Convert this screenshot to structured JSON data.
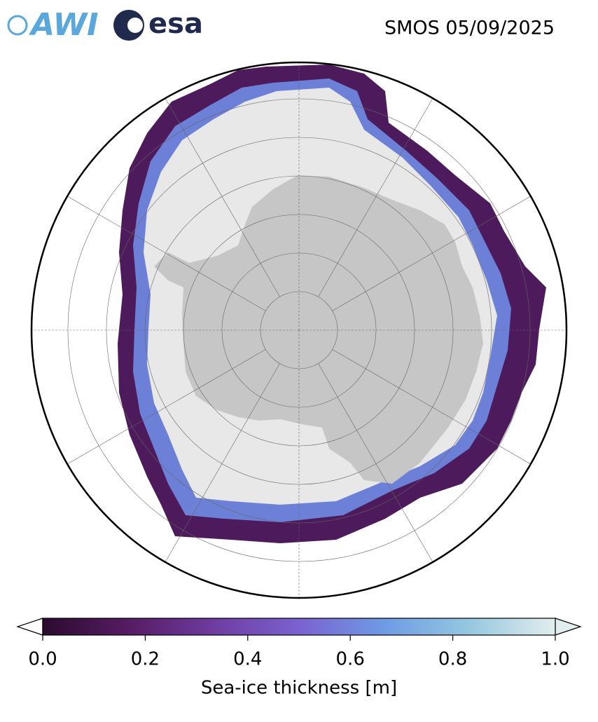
{
  "header": {
    "logos": [
      "AWI",
      "esa"
    ],
    "title": "SMOS 05/09/2025"
  },
  "colorbar": {
    "label": "Sea-ice thickness [m]",
    "lim": [
      0,
      1
    ],
    "ticks": [
      {
        "value": 0,
        "label": "0.0"
      },
      {
        "value": 0.2,
        "label": "0.2"
      },
      {
        "value": 0.4,
        "label": "0.4"
      },
      {
        "value": 0.6,
        "label": "0.6"
      },
      {
        "value": 0.8,
        "label": "0.8"
      },
      {
        "value": 1,
        "label": "1.0"
      }
    ],
    "colors": [
      "#2b0b2e",
      "#561b63",
      "#6e3ca0",
      "#7a62d0",
      "#6e9be4",
      "#96c8e0",
      "#e2eded"
    ]
  }
}
